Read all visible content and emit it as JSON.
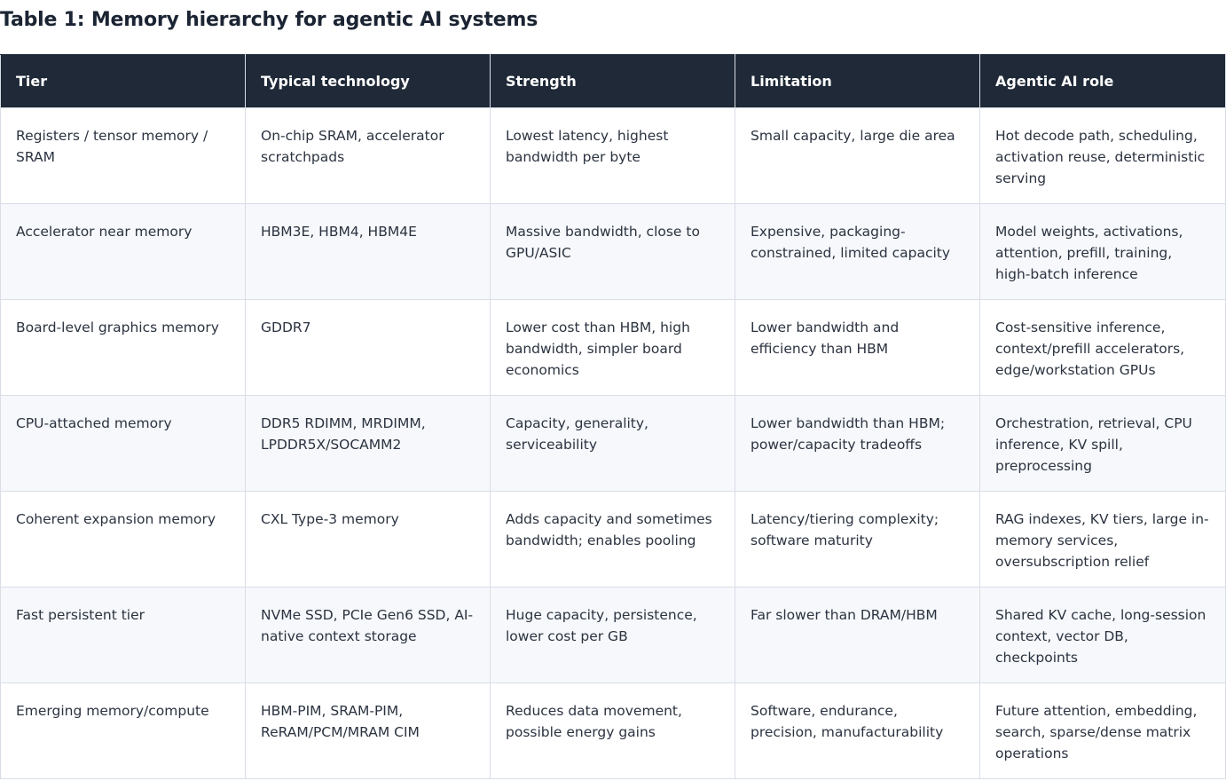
{
  "caption": "Table 1: Memory hierarchy for agentic AI systems",
  "table": {
    "headers": [
      "Tier",
      "Typical technology",
      "Strength",
      "Limitation",
      "Agentic AI role"
    ],
    "rows": [
      [
        "Registers / tensor memory / SRAM",
        "On-chip SRAM, accelerator scratchpads",
        "Lowest latency, highest bandwidth per byte",
        "Small capacity, large die area",
        "Hot decode path, scheduling, activation reuse, deterministic serving"
      ],
      [
        "Accelerator near memory",
        "HBM3E, HBM4, HBM4E",
        "Massive bandwidth, close to GPU/ASIC",
        "Expensive, packaging-constrained, limited capacity",
        "Model weights, activations, attention, prefill, training, high-batch inference"
      ],
      [
        "Board-level graphics memory",
        "GDDR7",
        "Lower cost than HBM, high bandwidth, simpler board economics",
        "Lower bandwidth and efficiency than HBM",
        "Cost-sensitive inference, context/prefill accelerators, edge/workstation GPUs"
      ],
      [
        "CPU-attached memory",
        "DDR5 RDIMM, MRDIMM, LPDDR5X/SOCAMM2",
        "Capacity, generality, serviceability",
        "Lower bandwidth than HBM; power/capacity tradeoffs",
        "Orchestration, retrieval, CPU inference, KV spill, preprocessing"
      ],
      [
        "Coherent expansion memory",
        "CXL Type-3 memory",
        "Adds capacity and sometimes bandwidth; enables pooling",
        "Latency/tiering complexity; software maturity",
        "RAG indexes, KV tiers, large in-memory services, oversubscription relief"
      ],
      [
        "Fast persistent tier",
        "NVMe SSD, PCIe Gen6 SSD, AI-native context storage",
        "Huge capacity, persistence, lower cost per GB",
        "Far slower than DRAM/HBM",
        "Shared KV cache, long-session context, vector DB, checkpoints"
      ],
      [
        "Emerging memory/compute",
        "HBM-PIM, SRAM-PIM, ReRAM/PCM/MRAM CIM",
        "Reduces data movement, possible energy gains",
        "Software, endurance, precision, manufacturability",
        "Future attention, embedding, search, sparse/dense matrix operations"
      ]
    ]
  }
}
